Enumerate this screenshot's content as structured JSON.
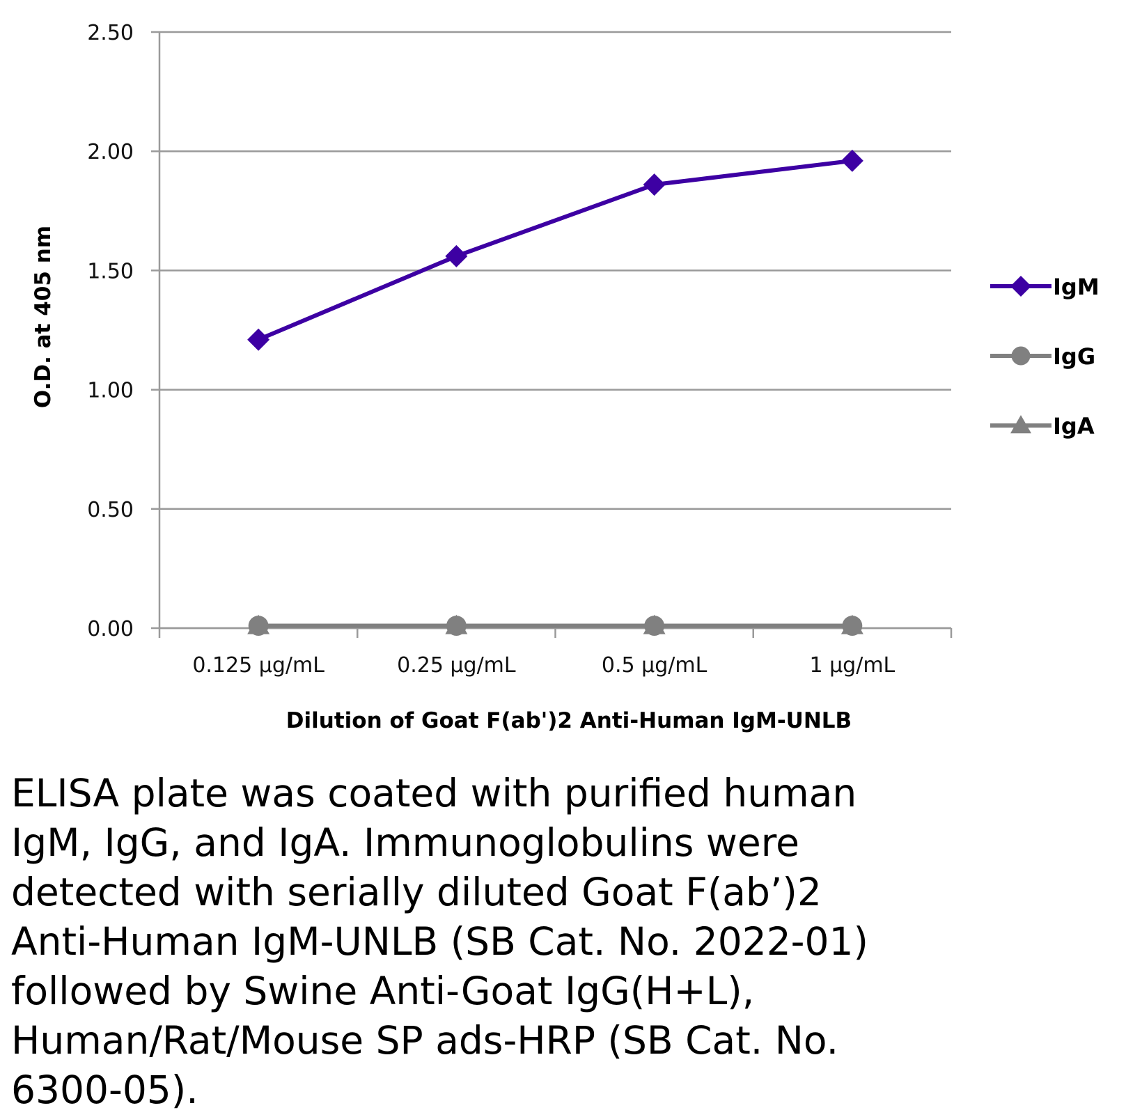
{
  "chart_data": {
    "type": "line",
    "title": "",
    "xlabel": "Dilution of Goat F(ab')2 Anti-Human IgM-UNLB",
    "ylabel": "O.D. at 405 nm",
    "categories": [
      "0.125 µg/mL",
      "0.25 µg/mL",
      "0.5 µg/mL",
      "1 µg/mL"
    ],
    "ylim": [
      0,
      2.5
    ],
    "yticks": [
      "0.00",
      "0.50",
      "1.00",
      "1.50",
      "2.00",
      "2.50"
    ],
    "ytick_values": [
      0,
      0.5,
      1.0,
      1.5,
      2.0,
      2.5
    ],
    "grid": true,
    "legend_position": "right",
    "series": [
      {
        "name": "IgM",
        "values": [
          1.21,
          1.56,
          1.86,
          1.96
        ],
        "color": "#3d00a3",
        "marker": "diamond"
      },
      {
        "name": "IgG",
        "values": [
          0.01,
          0.01,
          0.01,
          0.01
        ],
        "color": "#808080",
        "marker": "circle"
      },
      {
        "name": "IgA",
        "values": [
          0.01,
          0.01,
          0.01,
          0.01
        ],
        "color": "#808080",
        "marker": "triangle"
      }
    ]
  },
  "caption": "ELISA plate was coated with purified human\nIgM, IgG, and IgA.  Immunoglobulins were\ndetected with serially diluted Goat F(ab’)2\nAnti-Human IgM-UNLB (SB Cat. No. 2022-01)\nfollowed by Swine Anti-Goat IgG(H+L),\nHuman/Rat/Mouse SP ads-HRP (SB Cat. No.\n6300-05)."
}
